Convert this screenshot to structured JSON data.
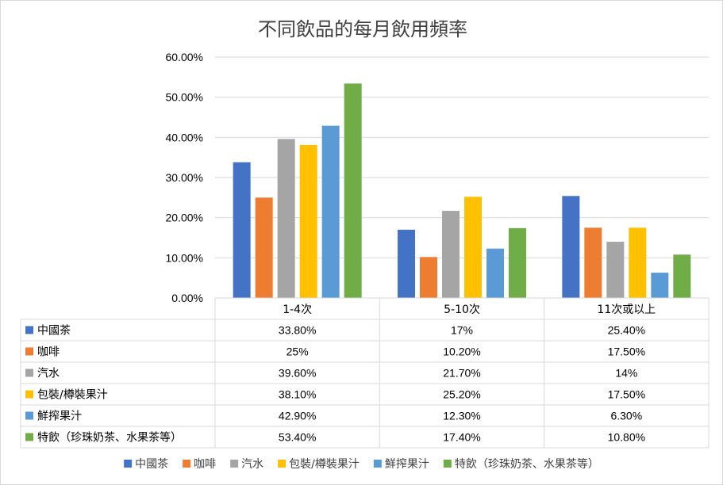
{
  "chart_data": {
    "type": "bar",
    "title": "不同飲品的每月飲用頻率",
    "categories": [
      "1-4次",
      "5-10次",
      "11次或以上"
    ],
    "ylim": [
      0,
      60
    ],
    "yticks": [
      "0.00%",
      "10.00%",
      "20.00%",
      "30.00%",
      "40.00%",
      "50.00%",
      "60.00%"
    ],
    "grid": true,
    "legend_position": "bottom",
    "series": [
      {
        "name": "中國茶",
        "color": "#4472C4",
        "values": [
          33.8,
          17,
          25.4
        ],
        "labels": [
          "33.80%",
          "17%",
          "25.40%"
        ]
      },
      {
        "name": "咖啡",
        "color": "#ED7D31",
        "values": [
          25,
          10.2,
          17.5
        ],
        "labels": [
          "25%",
          "10.20%",
          "17.50%"
        ]
      },
      {
        "name": "汽水",
        "color": "#A5A5A5",
        "values": [
          39.6,
          21.7,
          14
        ],
        "labels": [
          "39.60%",
          "21.70%",
          "14%"
        ]
      },
      {
        "name": "包裝/樽裝果汁",
        "color": "#FFC000",
        "values": [
          38.1,
          25.2,
          17.5
        ],
        "labels": [
          "38.10%",
          "25.20%",
          "17.50%"
        ]
      },
      {
        "name": "鮮搾果汁",
        "color": "#5B9BD5",
        "values": [
          42.9,
          12.3,
          6.3
        ],
        "labels": [
          "42.90%",
          "12.30%",
          "6.30%"
        ]
      },
      {
        "name": "特飲（珍珠奶茶、水果茶等）",
        "color": "#70AD47",
        "values": [
          53.4,
          17.4,
          10.8
        ],
        "labels": [
          "53.40%",
          "17.40%",
          "10.80%"
        ]
      }
    ]
  }
}
